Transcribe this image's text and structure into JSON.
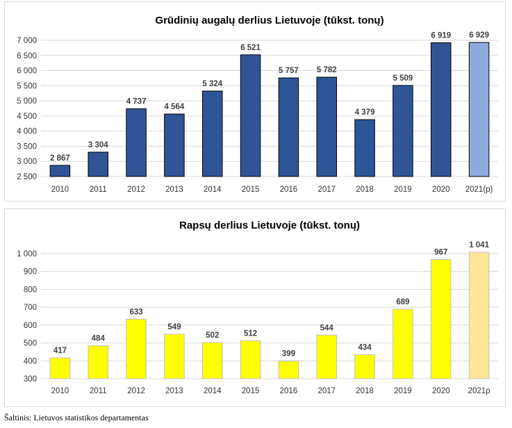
{
  "chart_data": [
    {
      "type": "bar",
      "title": "Grūdinių augalų derlius Lietuvoje (tūkst. tonų)",
      "categories": [
        "2010",
        "2011",
        "2012",
        "2013",
        "2014",
        "2015",
        "2016",
        "2017",
        "2018",
        "2019",
        "2020",
        "2021(p)"
      ],
      "values": [
        2867,
        3304,
        4737,
        4564,
        5324,
        6521,
        5757,
        5782,
        4379,
        5509,
        6919,
        6929
      ],
      "value_labels": [
        "2 867",
        "3 304",
        "4 737",
        "4 564",
        "5 324",
        "6 521",
        "5 757",
        "5 782",
        "4 379",
        "5 509",
        "6 919",
        "6 929"
      ],
      "ylim": [
        2500,
        7000
      ],
      "yticks": [
        2500,
        3000,
        3500,
        4000,
        4500,
        5000,
        5500,
        6000,
        6500,
        7000
      ],
      "ytick_labels": [
        "2 500",
        "3 000",
        "3 500",
        "4 000",
        "4 500",
        "5 000",
        "5 500",
        "6 000",
        "6 500",
        "7 000"
      ],
      "colors": {
        "bar": "#2f5597",
        "forecast": "#8faadc",
        "border": "#000000"
      },
      "grid": true
    },
    {
      "type": "bar",
      "title": "Rapsų derlius Lietuvoje (tūkst. tonų)",
      "categories": [
        "2010",
        "2011",
        "2012",
        "2013",
        "2014",
        "2015",
        "2016",
        "2017",
        "2018",
        "2019",
        "2020",
        "2021p"
      ],
      "values": [
        417,
        484,
        633,
        549,
        502,
        512,
        399,
        544,
        434,
        689,
        967,
        1041
      ],
      "value_labels": [
        "417",
        "484",
        "633",
        "549",
        "502",
        "512",
        "399",
        "544",
        "434",
        "689",
        "967",
        "1 041"
      ],
      "ylim": [
        300,
        1000
      ],
      "yticks": [
        300,
        400,
        500,
        600,
        700,
        800,
        900,
        1000
      ],
      "ytick_labels": [
        "300",
        "400",
        "500",
        "600",
        "700",
        "800",
        "900",
        "1 000"
      ],
      "colors": {
        "bar": "#ffff00",
        "forecast": "#ffe699",
        "border": "#bfbfbf"
      },
      "grid": true
    }
  ],
  "source": "Šaltinis: Lietuvos statistikos departamentas"
}
